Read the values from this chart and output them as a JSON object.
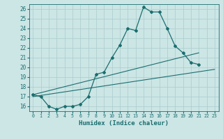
{
  "xlabel": "Humidex (Indice chaleur)",
  "ylabel": "",
  "background_color": "#cce5e5",
  "grid_color": "#aacccc",
  "line_color": "#1a6e6e",
  "xlim": [
    -0.5,
    23.5
  ],
  "ylim": [
    15.5,
    26.5
  ],
  "yticks": [
    16,
    17,
    18,
    19,
    20,
    21,
    22,
    23,
    24,
    25,
    26
  ],
  "xticks": [
    0,
    1,
    2,
    3,
    4,
    5,
    6,
    7,
    8,
    9,
    10,
    11,
    12,
    13,
    14,
    15,
    16,
    17,
    18,
    19,
    20,
    21,
    22,
    23
  ],
  "series_main": {
    "x": [
      0,
      1,
      2,
      3,
      4,
      5,
      6,
      7,
      8,
      9,
      10,
      11,
      12,
      13,
      14,
      15,
      16,
      17,
      18,
      19,
      20,
      21
    ],
    "y": [
      17.2,
      17.0,
      16.0,
      15.7,
      16.0,
      16.0,
      16.2,
      17.0,
      19.3,
      19.5,
      21.0,
      22.3,
      24.0,
      23.8,
      26.2,
      25.7,
      25.7,
      24.0,
      22.2,
      21.5,
      20.5,
      20.3
    ]
  },
  "series_trend1": {
    "x": [
      0,
      21
    ],
    "y": [
      17.2,
      21.5
    ]
  },
  "series_trend2": {
    "x": [
      0,
      23
    ],
    "y": [
      17.0,
      19.8
    ]
  }
}
